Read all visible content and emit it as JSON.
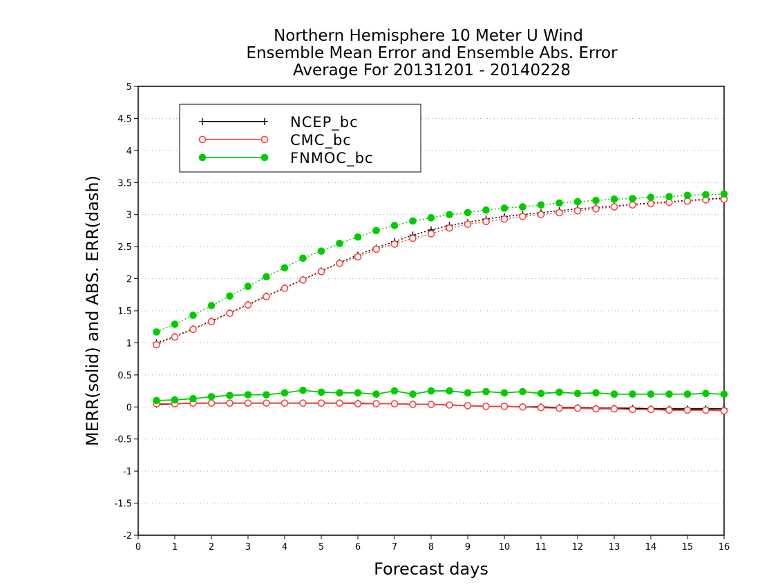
{
  "chart_data": {
    "type": "line",
    "title_lines": [
      "Northern Hemisphere 10 Meter U Wind",
      "Ensemble Mean Error and Ensemble Abs. Error",
      "Average For 20131201 - 20140228"
    ],
    "xlabel": "Forecast days",
    "ylabel": "MERR(solid) and ABS. ERR(dash)",
    "xlim": [
      0,
      16
    ],
    "ylim": [
      -2,
      5
    ],
    "x_ticks": [
      0,
      1,
      2,
      3,
      4,
      5,
      6,
      7,
      8,
      9,
      10,
      11,
      12,
      13,
      14,
      15,
      16
    ],
    "x_tick_labels": [
      "0",
      "1",
      "2",
      "3",
      "4",
      "5",
      "6",
      "7",
      "8",
      "9",
      "10",
      "11",
      "12",
      "13",
      "14",
      "15",
      "16"
    ],
    "y_ticks": [
      -2,
      -1.5,
      -1,
      -0.5,
      0,
      0.5,
      1,
      1.5,
      2,
      2.5,
      3,
      3.5,
      4,
      4.5,
      5
    ],
    "y_tick_labels": [
      "-2",
      "-1.5",
      "-1",
      "-0.5",
      "0",
      "0.5",
      "1",
      "1.5",
      "2",
      "2.5",
      "3",
      "3.5",
      "4",
      "4.5",
      "5"
    ],
    "grid": true,
    "legend_position": "top-left",
    "x": [
      0.5,
      1,
      1.5,
      2,
      2.5,
      3,
      3.5,
      4,
      4.5,
      5,
      5.5,
      6,
      6.5,
      7,
      7.5,
      8,
      8.5,
      9,
      9.5,
      10,
      10.5,
      11,
      11.5,
      12,
      12.5,
      13,
      13.5,
      14,
      14.5,
      15,
      15.5,
      16
    ],
    "series": [
      {
        "name": "NCEP_bc",
        "color": "#000000",
        "marker": "plus",
        "merr": [
          0.04,
          0.05,
          0.06,
          0.06,
          0.06,
          0.06,
          0.06,
          0.06,
          0.06,
          0.06,
          0.06,
          0.06,
          0.05,
          0.05,
          0.04,
          0.04,
          0.03,
          0.02,
          0.01,
          0.01,
          0.0,
          0.0,
          -0.01,
          -0.01,
          -0.02,
          -0.02,
          -0.02,
          -0.03,
          -0.03,
          -0.03,
          -0.03,
          -0.03
        ],
        "abs_err": [
          1.0,
          1.1,
          1.22,
          1.34,
          1.47,
          1.6,
          1.73,
          1.86,
          1.99,
          2.12,
          2.25,
          2.37,
          2.48,
          2.58,
          2.68,
          2.76,
          2.83,
          2.88,
          2.93,
          2.97,
          3.0,
          3.03,
          3.06,
          3.09,
          3.11,
          3.13,
          3.16,
          3.18,
          3.2,
          3.22,
          3.24,
          3.26
        ]
      },
      {
        "name": "CMC_bc",
        "color": "#ff4040",
        "marker": "open-circle",
        "merr": [
          0.05,
          0.05,
          0.06,
          0.06,
          0.06,
          0.06,
          0.06,
          0.06,
          0.06,
          0.06,
          0.06,
          0.05,
          0.05,
          0.05,
          0.04,
          0.04,
          0.03,
          0.02,
          0.01,
          0.01,
          0.0,
          -0.01,
          -0.02,
          -0.02,
          -0.03,
          -0.03,
          -0.04,
          -0.04,
          -0.05,
          -0.05,
          -0.05,
          -0.06
        ],
        "abs_err": [
          0.97,
          1.09,
          1.21,
          1.33,
          1.46,
          1.59,
          1.72,
          1.85,
          1.98,
          2.11,
          2.24,
          2.34,
          2.46,
          2.54,
          2.63,
          2.7,
          2.79,
          2.85,
          2.89,
          2.93,
          2.97,
          3.0,
          3.03,
          3.06,
          3.09,
          3.12,
          3.15,
          3.17,
          3.19,
          3.21,
          3.23,
          3.24
        ]
      },
      {
        "name": "FNMOC_bc",
        "color": "#00cc00",
        "marker": "filled-circle",
        "merr": [
          0.1,
          0.11,
          0.13,
          0.16,
          0.18,
          0.19,
          0.19,
          0.22,
          0.26,
          0.23,
          0.22,
          0.22,
          0.2,
          0.25,
          0.2,
          0.25,
          0.25,
          0.22,
          0.24,
          0.22,
          0.24,
          0.21,
          0.23,
          0.21,
          0.22,
          0.2,
          0.2,
          0.2,
          0.2,
          0.2,
          0.21,
          0.2
        ],
        "abs_err": [
          1.17,
          1.29,
          1.43,
          1.58,
          1.73,
          1.88,
          2.03,
          2.17,
          2.32,
          2.43,
          2.55,
          2.65,
          2.75,
          2.83,
          2.9,
          2.95,
          3.0,
          3.03,
          3.07,
          3.1,
          3.12,
          3.15,
          3.18,
          3.2,
          3.22,
          3.24,
          3.25,
          3.27,
          3.28,
          3.3,
          3.31,
          3.32
        ]
      }
    ]
  }
}
